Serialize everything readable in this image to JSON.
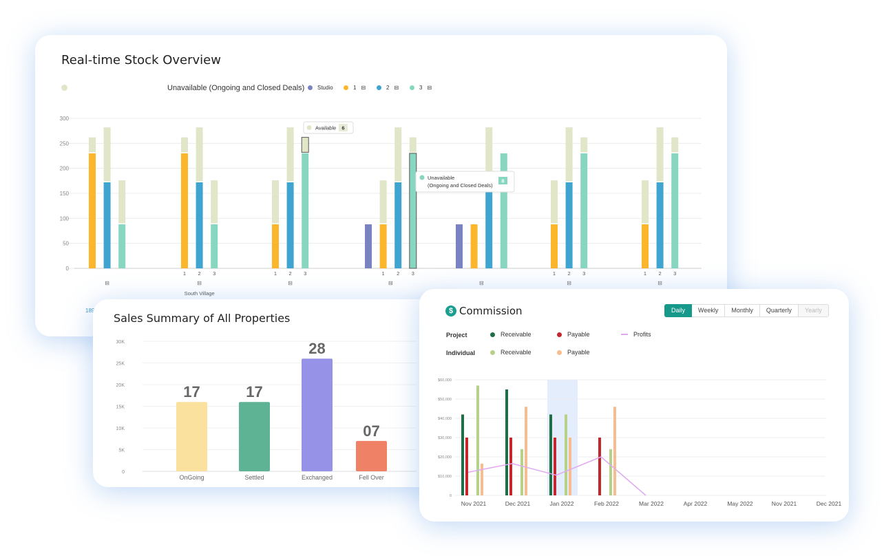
{
  "stock": {
    "title": "Real-time Stock Overview",
    "legend": {
      "unavailable_label": "Unavailable (Ongoing and Closed Deals)",
      "studio_label": "Studio",
      "one_label": "1",
      "two_label": "2",
      "three_label": "3"
    },
    "tooltip_available": {
      "label": "Available",
      "value": "6"
    },
    "tooltip_unavailable": {
      "label_line1": "Unavailable",
      "label_line2": "(Ongoing and Closed Deals)",
      "value": "8"
    },
    "group_label": "South Village",
    "cut_text": "189"
  },
  "sales": {
    "title": "Sales Summary of All Properties"
  },
  "commission": {
    "title": "Commission",
    "currency_icon": "$",
    "tabs": [
      "Daily",
      "Weekly",
      "Monthly",
      "Quarterly",
      "Yearly"
    ],
    "active_tab": "Daily",
    "legend": {
      "project_label": "Project",
      "individual_label": "Individual",
      "receivable": "Receivable",
      "payable": "Payable",
      "profits": "Profits"
    }
  },
  "colors": {
    "available": "#e2e6c9",
    "studio": "#7a83c2",
    "one": "#fbb62c",
    "two": "#3fa5d0",
    "three": "#86d6c0",
    "project_receivable": "#1f6e45",
    "project_payable": "#c1272d",
    "individual_receivable": "#b6d18a",
    "individual_payable": "#f8bd8e",
    "profits": "#e0a8f0",
    "ongoing": "#fae19d",
    "settled": "#5db394",
    "exchanged": "#9592e8",
    "fell_over": "#ee8166"
  },
  "chart_data": [
    {
      "type": "bar",
      "title": "Real-time Stock Overview",
      "stacked": true,
      "ylim": [
        0,
        300
      ],
      "yticks": [
        0,
        50,
        100,
        150,
        200,
        250,
        300
      ],
      "grid": true,
      "legend_position": "top",
      "groups": [
        {
          "label": "",
          "bars": [
            {
              "type": "1",
              "tick": "",
              "unavailable": 230,
              "available": 32
            },
            {
              "type": "2",
              "tick": "",
              "unavailable": 172,
              "available": 110
            },
            {
              "type": "3",
              "tick": "",
              "unavailable": 88,
              "available": 88
            }
          ]
        },
        {
          "label": "South Village",
          "bars": [
            {
              "type": "1",
              "tick": "1",
              "unavailable": 230,
              "available": 32
            },
            {
              "type": "2",
              "tick": "2",
              "unavailable": 172,
              "available": 110
            },
            {
              "type": "3",
              "tick": "3",
              "unavailable": 88,
              "available": 88
            }
          ]
        },
        {
          "label": "",
          "bars": [
            {
              "type": "1",
              "tick": "1",
              "unavailable": 88,
              "available": 88
            },
            {
              "type": "2",
              "tick": "2",
              "unavailable": 172,
              "available": 110
            },
            {
              "type": "3",
              "tick": "3",
              "unavailable": 230,
              "available": 32,
              "highlight": "available"
            }
          ]
        },
        {
          "label": "",
          "bars": [
            {
              "type": "studio",
              "tick": "",
              "unavailable": 88,
              "available": 0
            },
            {
              "type": "1",
              "tick": "1",
              "unavailable": 88,
              "available": 88
            },
            {
              "type": "2",
              "tick": "2",
              "unavailable": 172,
              "available": 110
            },
            {
              "type": "3",
              "tick": "3",
              "unavailable": 230,
              "available": 32,
              "highlight": "unavailable"
            }
          ]
        },
        {
          "label": "",
          "bars": [
            {
              "type": "studio",
              "tick": "",
              "unavailable": 88,
              "available": 0
            },
            {
              "type": "1",
              "tick": "",
              "unavailable": 88,
              "available": 0
            },
            {
              "type": "2",
              "tick": "",
              "unavailable": 172,
              "available": 110
            },
            {
              "type": "3",
              "tick": "",
              "unavailable": 230,
              "available": 0
            }
          ]
        },
        {
          "label": "",
          "bars": [
            {
              "type": "1",
              "tick": "1",
              "unavailable": 88,
              "available": 88
            },
            {
              "type": "2",
              "tick": "2",
              "unavailable": 172,
              "available": 110
            },
            {
              "type": "3",
              "tick": "3",
              "unavailable": 230,
              "available": 32
            }
          ]
        },
        {
          "label": "",
          "bars": [
            {
              "type": "1",
              "tick": "1",
              "unavailable": 88,
              "available": 88
            },
            {
              "type": "2",
              "tick": "2",
              "unavailable": 172,
              "available": 110
            },
            {
              "type": "3",
              "tick": "3",
              "unavailable": 230,
              "available": 32
            }
          ]
        }
      ]
    },
    {
      "type": "bar",
      "title": "Sales Summary of All Properties",
      "categories": [
        "OnGoing",
        "Settled",
        "Exchanged",
        "Fell Over"
      ],
      "labels": [
        "17",
        "17",
        "28",
        "07"
      ],
      "values": [
        16000,
        16000,
        26000,
        7000
      ],
      "ylim": [
        0,
        30000
      ],
      "yticks": [
        "0",
        "5K",
        "10K",
        "15K",
        "20K",
        "25K",
        "30K"
      ],
      "grid": true
    },
    {
      "type": "bar",
      "title": "Commission",
      "categories": [
        "Nov 2021",
        "Dec 2021",
        "Jan 2022",
        "Feb 2022",
        "Mar 2022",
        "Apr 2022",
        "May 2022",
        "Nov 2021",
        "Dec 2021"
      ],
      "yticks": [
        "0",
        "$10,000",
        "$20,000",
        "$30,000",
        "$40,000",
        "$50,000",
        "$60,000"
      ],
      "ylim": [
        0,
        60000
      ],
      "grid": true,
      "highlighted_category": "Jan 2022",
      "series": [
        {
          "name": "Project Receivable",
          "values": [
            42000,
            55000,
            42000,
            null,
            null,
            null,
            null,
            null,
            null
          ]
        },
        {
          "name": "Project Payable",
          "values": [
            30000,
            30000,
            30000,
            30000,
            null,
            null,
            null,
            null,
            null
          ]
        },
        {
          "name": "Individual Receivable",
          "values": [
            57000,
            24000,
            42000,
            24000,
            null,
            null,
            null,
            null,
            null
          ]
        },
        {
          "name": "Individual Payable",
          "values": [
            16500,
            46000,
            30000,
            46000,
            null,
            null,
            null,
            null,
            null
          ]
        },
        {
          "name": "Profits",
          "type": "line",
          "values": [
            12000,
            16500,
            10500,
            20000,
            0,
            null,
            null,
            null,
            null
          ]
        }
      ]
    }
  ]
}
